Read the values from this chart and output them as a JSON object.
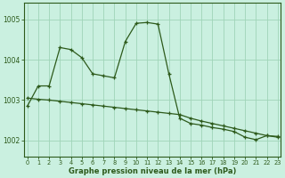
{
  "line1_x": [
    0,
    1,
    2,
    3,
    4,
    5,
    6,
    7,
    8,
    9,
    10,
    11,
    12,
    13,
    14,
    15,
    16,
    17,
    18,
    19,
    20,
    21,
    22,
    23
  ],
  "line1_y": [
    1002.85,
    1003.35,
    1003.35,
    1004.3,
    1004.25,
    1004.05,
    1003.65,
    1003.6,
    1003.55,
    1004.45,
    1004.9,
    1004.92,
    1004.88,
    1003.65,
    1002.55,
    1002.42,
    1002.38,
    1002.32,
    1002.28,
    1002.22,
    1002.08,
    1002.02,
    1002.12,
    1002.1
  ],
  "line2_x": [
    0,
    1,
    2,
    3,
    4,
    5,
    6,
    7,
    8,
    9,
    10,
    11,
    12,
    13,
    14,
    15,
    16,
    17,
    18,
    19,
    20,
    21,
    22,
    23
  ],
  "line2_y": [
    1003.05,
    1003.02,
    1003.0,
    1002.97,
    1002.94,
    1002.91,
    1002.88,
    1002.85,
    1002.82,
    1002.79,
    1002.76,
    1002.73,
    1002.7,
    1002.67,
    1002.64,
    1002.55,
    1002.48,
    1002.42,
    1002.36,
    1002.3,
    1002.24,
    1002.18,
    1002.12,
    1002.08
  ],
  "bg_color": "#caf0e0",
  "line_color": "#2d5a1b",
  "grid_color": "#a0d4b8",
  "yticks": [
    1002,
    1003,
    1004,
    1005
  ],
  "xticks": [
    0,
    1,
    2,
    3,
    4,
    5,
    6,
    7,
    8,
    9,
    10,
    11,
    12,
    13,
    14,
    15,
    16,
    17,
    18,
    19,
    20,
    21,
    22,
    23
  ],
  "xlabel": "Graphe pression niveau de la mer (hPa)",
  "ylim": [
    1001.6,
    1005.4
  ],
  "xlim": [
    -0.3,
    23.3
  ]
}
